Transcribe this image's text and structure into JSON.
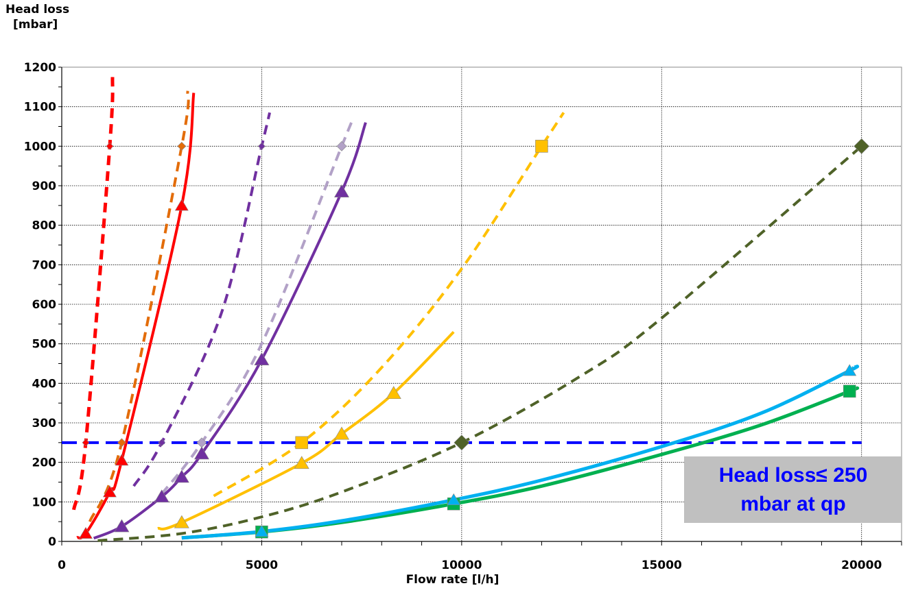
{
  "chart_data": {
    "type": "line",
    "ylabel_line1": "Head loss",
    "ylabel_line2": "[mbar]",
    "xlabel": "Flow rate [l/h]",
    "xlim": [
      0,
      21000
    ],
    "ylim": [
      0,
      1200
    ],
    "x_ticks": [
      0,
      5000,
      10000,
      15000,
      20000
    ],
    "y_ticks": [
      0,
      100,
      200,
      300,
      400,
      500,
      600,
      700,
      800,
      900,
      1000,
      1100,
      1200
    ],
    "grid": true,
    "annotation": {
      "line1": "Head loss≤ 250",
      "line2": "mbar at qp",
      "threshold": 250,
      "threshold_x_range": [
        0,
        20000
      ],
      "threshold_color": "#0000ff"
    },
    "series": [
      {
        "color": "#ff0000",
        "dash": true,
        "width": 5,
        "marker": "diamond",
        "marker_size": 5,
        "x": [
          300,
          600,
          1200,
          1270
        ],
        "y": [
          80,
          250,
          1000,
          1175
        ],
        "marker_points": [
          [
            600,
            250
          ],
          [
            1200,
            1000
          ]
        ]
      },
      {
        "color": "#e36c09",
        "dash": true,
        "width": 4,
        "marker": "diamond",
        "marker_size": 6,
        "x": [
          700,
          1500,
          3000,
          3150
        ],
        "y": [
          50,
          250,
          1000,
          1140
        ],
        "marker_points": [
          [
            1500,
            250
          ],
          [
            3000,
            1000
          ]
        ]
      },
      {
        "color": "#ff0000",
        "dash": false,
        "width": 4,
        "marker": "triangle",
        "marker_size": 9,
        "x": [
          380,
          600,
          1200,
          1500,
          3000,
          3300
        ],
        "y": [
          10,
          20,
          125,
          205,
          850,
          1135
        ],
        "marker_points": [
          [
            600,
            20
          ],
          [
            1200,
            125
          ],
          [
            1500,
            205
          ],
          [
            3000,
            850
          ]
        ]
      },
      {
        "color": "#7030a0",
        "dash": true,
        "width": 4,
        "marker": "diamond",
        "marker_size": 5,
        "x": [
          1800,
          2500,
          4000,
          5000,
          5200
        ],
        "y": [
          140,
          250,
          580,
          1000,
          1085
        ],
        "marker_points": [
          [
            2500,
            250
          ],
          [
            5000,
            1000
          ]
        ]
      },
      {
        "color": "#b2a1c7",
        "dash": true,
        "width": 4,
        "marker": "diamond",
        "marker_size": 7,
        "x": [
          2500,
          3500,
          5000,
          7000,
          7250
        ],
        "y": [
          120,
          250,
          500,
          1000,
          1060
        ],
        "marker_points": [
          [
            3500,
            250
          ],
          [
            7000,
            1000
          ]
        ]
      },
      {
        "color": "#7030a0",
        "dash": false,
        "width": 4,
        "marker": "triangle",
        "marker_size": 10,
        "x": [
          800,
          1500,
          2500,
          3000,
          3500,
          5000,
          7000,
          7600
        ],
        "y": [
          8,
          38,
          113,
          163,
          222,
          460,
          885,
          1060
        ],
        "marker_points": [
          [
            1500,
            38
          ],
          [
            2500,
            113
          ],
          [
            3000,
            163
          ],
          [
            3500,
            222
          ],
          [
            5000,
            460
          ],
          [
            7000,
            885
          ]
        ]
      },
      {
        "color": "#ffc000",
        "dash": true,
        "width": 4,
        "marker": "square",
        "marker_size": 9,
        "x": [
          3800,
          6000,
          8000,
          10000,
          12000,
          12550
        ],
        "y": [
          115,
          250,
          440,
          690,
          1000,
          1085
        ],
        "marker_points": [
          [
            6000,
            250
          ],
          [
            12000,
            1000
          ]
        ]
      },
      {
        "color": "#ffc000",
        "dash": false,
        "width": 4,
        "marker": "triangle",
        "marker_size": 10,
        "x": [
          2400,
          3000,
          6000,
          7000,
          8300,
          9800
        ],
        "y": [
          33,
          48,
          198,
          272,
          375,
          530
        ],
        "marker_points": [
          [
            3000,
            48
          ],
          [
            6000,
            198
          ],
          [
            7000,
            272
          ],
          [
            8300,
            375
          ]
        ]
      },
      {
        "color": "#4f6228",
        "dash": true,
        "width": 4,
        "marker": "diamond",
        "marker_size": 11,
        "x": [
          900,
          3000,
          5000,
          7000,
          10000,
          13000,
          15000,
          20000
        ],
        "y": [
          2,
          20,
          62,
          125,
          250,
          420,
          565,
          1000
        ],
        "marker_points": [
          [
            10000,
            250
          ],
          [
            20000,
            1000
          ]
        ]
      },
      {
        "color": "#00b050",
        "dash": false,
        "width": 5,
        "marker": "square",
        "marker_size": 9,
        "x": [
          3000,
          5000,
          7000,
          9800,
          12000,
          15000,
          17500,
          19700,
          19800
        ],
        "y": [
          9,
          24,
          48,
          95,
          140,
          220,
          295,
          380,
          385
        ],
        "marker_points": [
          [
            5000,
            24
          ],
          [
            9800,
            95
          ],
          [
            19700,
            380
          ]
        ]
      },
      {
        "color": "#00b0f0",
        "dash": false,
        "width": 5,
        "marker": "triangle",
        "marker_size": 9,
        "x": [
          3000,
          5000,
          7000,
          9800,
          12000,
          15000,
          17500,
          19700,
          19800
        ],
        "y": [
          9,
          25,
          52,
          105,
          155,
          240,
          325,
          432,
          440
        ],
        "marker_points": [
          [
            5000,
            25
          ],
          [
            9800,
            105
          ],
          [
            19700,
            432
          ]
        ]
      }
    ]
  }
}
